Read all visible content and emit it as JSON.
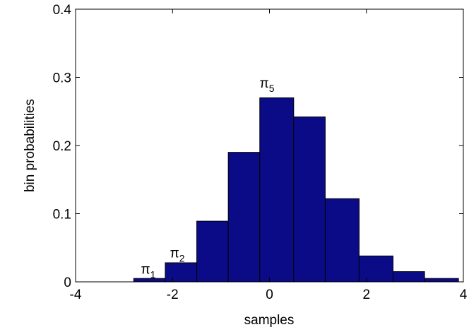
{
  "chart_data": {
    "type": "bar",
    "title": "",
    "xlabel": "samples",
    "ylabel": "bin probabilities",
    "xlim": [
      -4,
      4
    ],
    "ylim": [
      0,
      0.4
    ],
    "xticks": [
      -4,
      -2,
      0,
      2,
      4
    ],
    "yticks": [
      0,
      0.1,
      0.2,
      0.3,
      0.4
    ],
    "bar_color": "#0b0b87",
    "bins": [
      {
        "x0": -2.8,
        "x1": -2.15,
        "value": 0.005
      },
      {
        "x0": -2.15,
        "x1": -1.5,
        "value": 0.028
      },
      {
        "x0": -1.5,
        "x1": -0.85,
        "value": 0.089
      },
      {
        "x0": -0.85,
        "x1": -0.2,
        "value": 0.19
      },
      {
        "x0": -0.2,
        "x1": 0.5,
        "value": 0.27
      },
      {
        "x0": 0.5,
        "x1": 1.15,
        "value": 0.242
      },
      {
        "x0": 1.15,
        "x1": 1.85,
        "value": 0.122
      },
      {
        "x0": 1.85,
        "x1": 2.55,
        "value": 0.038
      },
      {
        "x0": 2.55,
        "x1": 3.2,
        "value": 0.015
      },
      {
        "x0": 3.2,
        "x1": 3.9,
        "value": 0.005
      }
    ],
    "annotations": [
      {
        "base": "π",
        "sub": "1",
        "x": -2.5,
        "y": 0.012
      },
      {
        "base": "π",
        "sub": "2",
        "x": -1.9,
        "y": 0.036
      },
      {
        "base": "π",
        "sub": "5",
        "x": -0.05,
        "y": 0.285
      }
    ]
  }
}
